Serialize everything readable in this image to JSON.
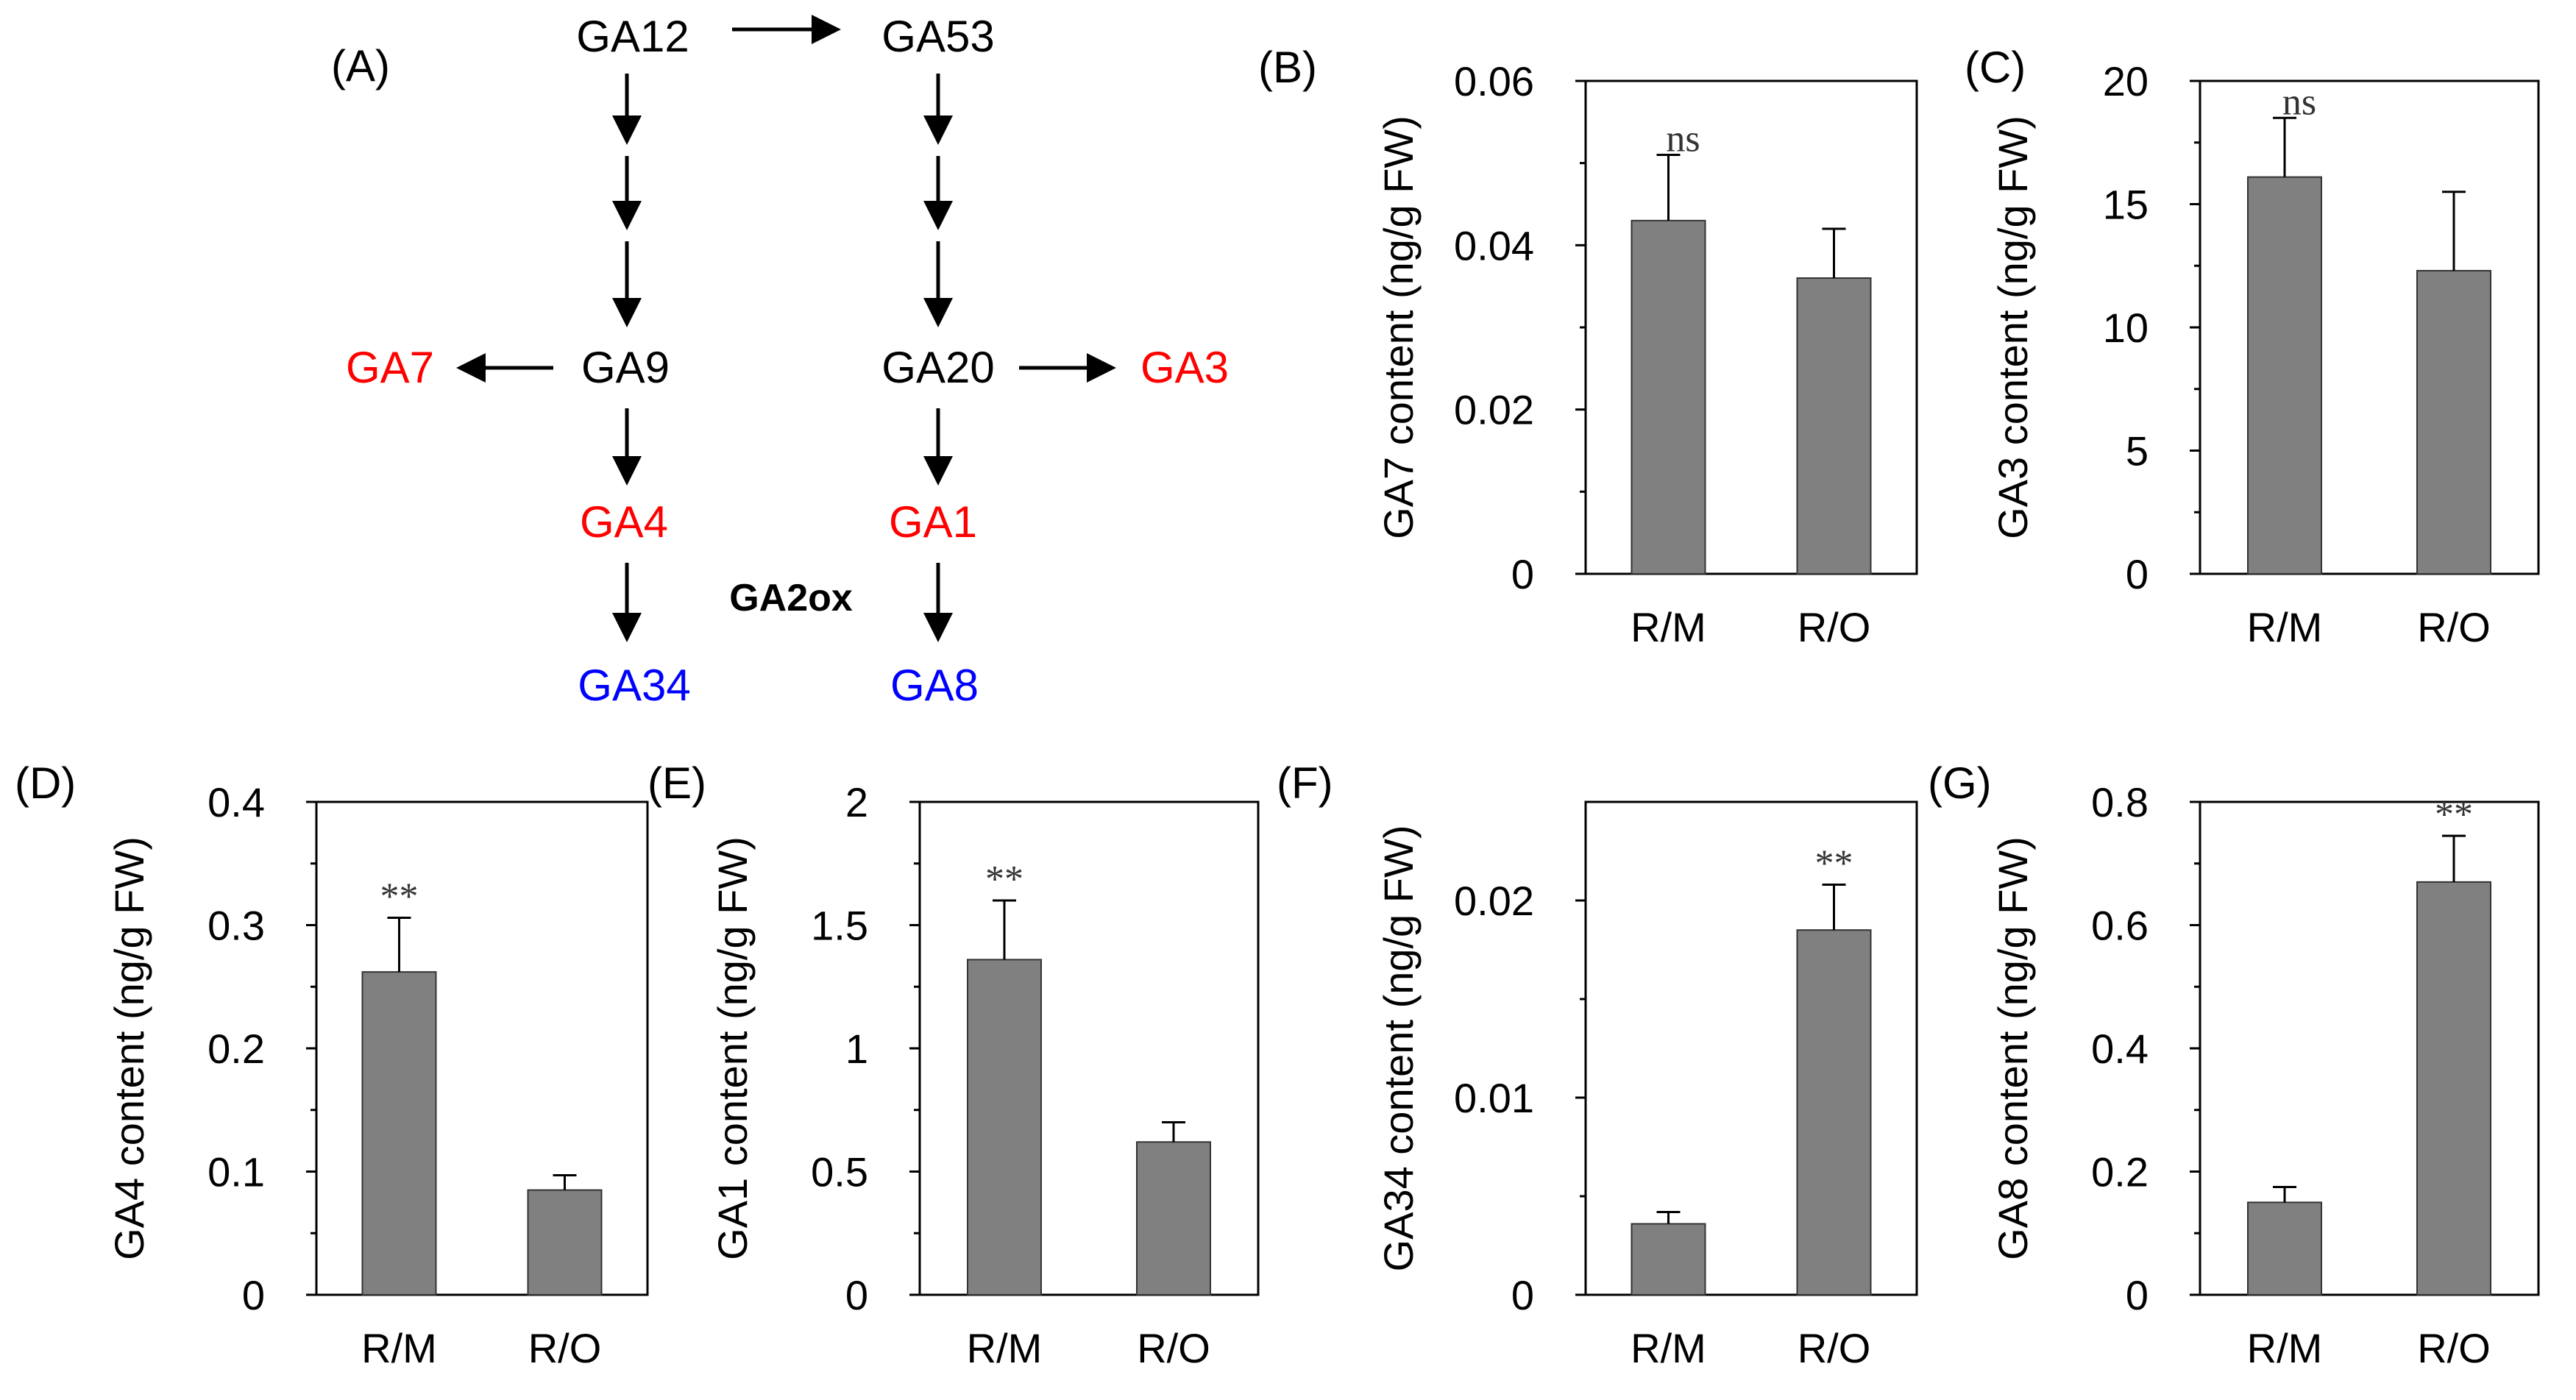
{
  "pathway": {
    "panel_label": "(A)",
    "nodes": {
      "ga12": "GA12",
      "ga53": "GA53",
      "ga9": "GA9",
      "ga20": "GA20",
      "ga7": "GA7",
      "ga3": "GA3",
      "ga4": "GA4",
      "ga1": "GA1",
      "ga34": "GA34",
      "ga8": "GA8"
    },
    "enzyme_label": "GA2ox",
    "colors": {
      "bioactive": "#ff0000",
      "inactive": "#0000ff",
      "precursor": "#000000"
    }
  },
  "colors": {
    "bar": "#808080",
    "axis": "#000000"
  },
  "chart_data": [
    {
      "id": "B",
      "panel_label": "(B)",
      "type": "bar",
      "categories": [
        "R/M",
        "R/O"
      ],
      "values": [
        0.043,
        0.036
      ],
      "errors": [
        0.008,
        0.006
      ],
      "ylim": [
        0,
        0.06
      ],
      "yticks": [
        0,
        0.02,
        0.04,
        0.06
      ],
      "ytick_labels": [
        "0",
        "0.02",
        "0.04",
        "0.06"
      ],
      "ylabel": "GA7 content (ng/g FW)",
      "annotation": {
        "text": "ns",
        "index": 0
      }
    },
    {
      "id": "C",
      "panel_label": "(C)",
      "type": "bar",
      "categories": [
        "R/M",
        "R/O"
      ],
      "values": [
        16.1,
        12.3
      ],
      "errors": [
        2.4,
        3.2
      ],
      "ylim": [
        0,
        20
      ],
      "yticks": [
        0,
        5,
        10,
        15,
        20
      ],
      "ytick_labels": [
        "0",
        "5",
        "10",
        "15",
        "20"
      ],
      "ylabel": "GA3 content (ng/g FW)",
      "annotation": {
        "text": "ns",
        "index": 0
      }
    },
    {
      "id": "D",
      "panel_label": "(D)",
      "type": "bar",
      "categories": [
        "R/M",
        "R/O"
      ],
      "values": [
        0.262,
        0.085
      ],
      "errors": [
        0.044,
        0.012
      ],
      "ylim": [
        0,
        0.4
      ],
      "yticks": [
        0,
        0.1,
        0.2,
        0.3,
        0.4
      ],
      "ytick_labels": [
        "0",
        "0.1",
        "0.2",
        "0.3",
        "0.4"
      ],
      "ylabel": "GA4 content (ng/g FW)",
      "annotation": {
        "text": "**",
        "index": 0
      }
    },
    {
      "id": "E",
      "panel_label": "(E)",
      "type": "bar",
      "categories": [
        "R/M",
        "R/O"
      ],
      "values": [
        1.36,
        0.62
      ],
      "errors": [
        0.24,
        0.08
      ],
      "ylim": [
        0,
        2
      ],
      "yticks": [
        0,
        0.5,
        1,
        1.5,
        2
      ],
      "ytick_labels": [
        "0",
        "0.5",
        "1",
        "1.5",
        "2"
      ],
      "ylabel": "GA1 content (ng/g FW)",
      "annotation": {
        "text": "**",
        "index": 0
      }
    },
    {
      "id": "F",
      "panel_label": "(F)",
      "type": "bar",
      "categories": [
        "R/M",
        "R/O"
      ],
      "values": [
        0.0036,
        0.0185
      ],
      "errors": [
        0.0006,
        0.0023
      ],
      "ylim": [
        0,
        0.025
      ],
      "yticks": [
        0,
        0.01,
        0.02
      ],
      "ytick_labels": [
        "0",
        "0.01",
        "0.02"
      ],
      "ylabel": "GA34 content (ng/g FW)",
      "annotation": {
        "text": "**",
        "index": 1
      }
    },
    {
      "id": "G",
      "panel_label": "(G)",
      "type": "bar",
      "categories": [
        "R/M",
        "R/O"
      ],
      "values": [
        0.15,
        0.67
      ],
      "errors": [
        0.025,
        0.075
      ],
      "ylim": [
        0,
        0.8
      ],
      "yticks": [
        0,
        0.2,
        0.4,
        0.6,
        0.8
      ],
      "ytick_labels": [
        "0",
        "0.2",
        "0.4",
        "0.6",
        "0.8"
      ],
      "ylabel": "GA8 content (ng/g FW)",
      "annotation": {
        "text": "**",
        "index": 1
      }
    }
  ]
}
